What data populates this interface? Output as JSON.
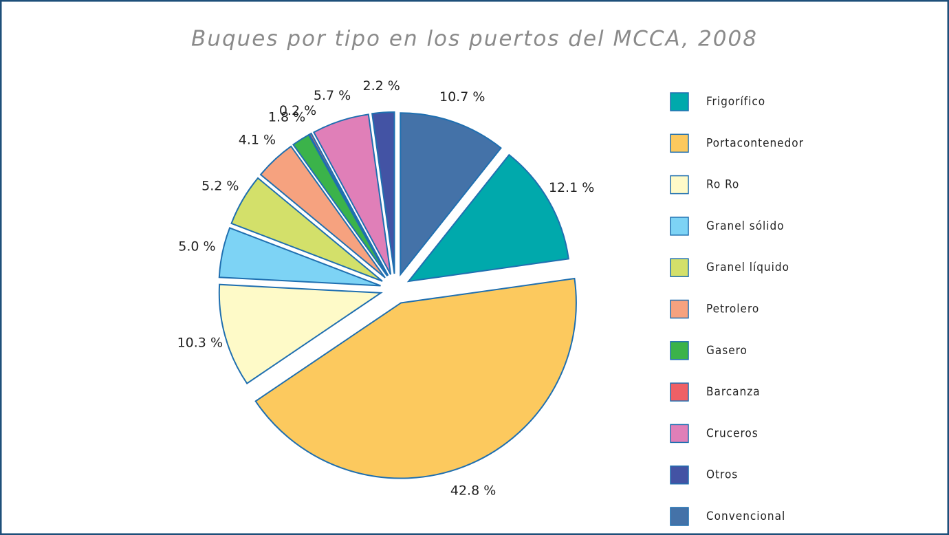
{
  "chart_data": {
    "type": "pie",
    "title": "Buques por tipo en los puertos del MCCA, 2008",
    "categories": [
      "Frigorífico",
      "Portacontenedor",
      "Ro Ro",
      "Granel sólido",
      "Granel líquido",
      "Petrolero",
      "Gasero",
      "Barcanza",
      "Cruceros",
      "Otros",
      "Convencional"
    ],
    "values": [
      12.1,
      42.8,
      10.3,
      5.0,
      5.2,
      4.1,
      1.8,
      0.2,
      5.7,
      2.2,
      10.7
    ],
    "value_labels": [
      "12.1 %",
      "42.8 %",
      "10.3 %",
      "5.0 %",
      "5.2 %",
      "4.1 %",
      "1.8 %",
      "0.2 %",
      "5.7 %",
      "2.2 %",
      "10.7 %"
    ],
    "colors": [
      "#00a9ac",
      "#fcc95e",
      "#fefac8",
      "#7dd3f5",
      "#d3e06a",
      "#f6a27f",
      "#3bb34a",
      "#ef6066",
      "#e07fb8",
      "#4353a4",
      "#4472a8"
    ],
    "legend": "right"
  }
}
